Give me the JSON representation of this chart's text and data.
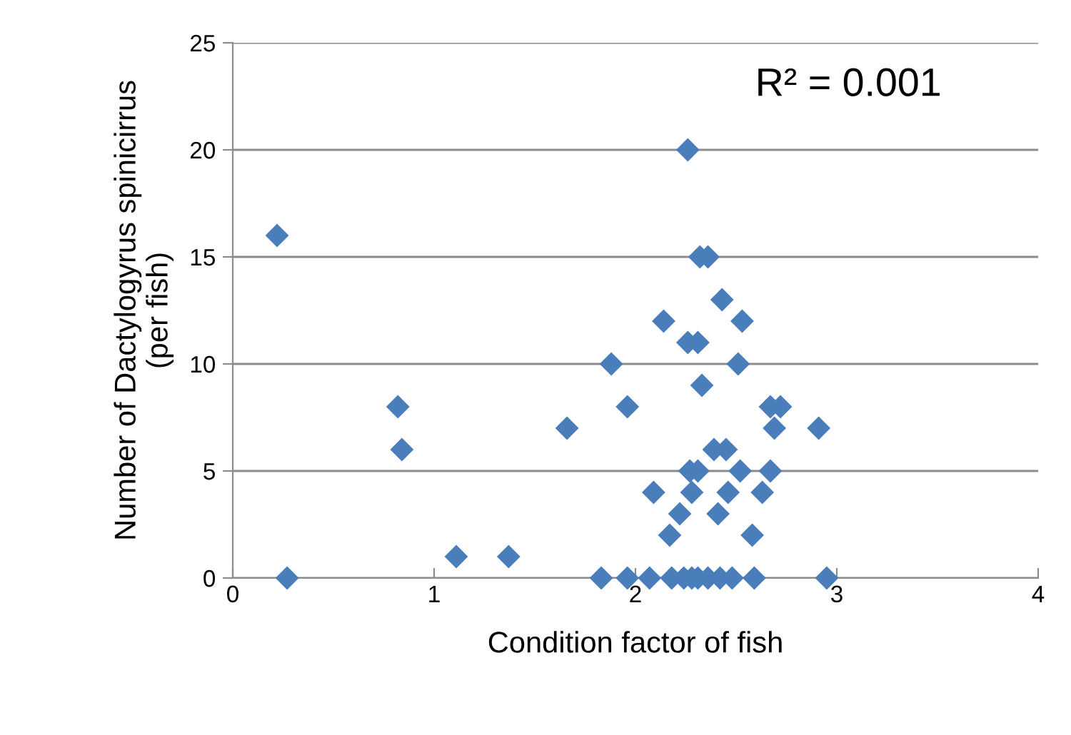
{
  "chart_data": {
    "type": "scatter",
    "xlabel": "Condition factor of fish",
    "ylabel": "Number of Dactylogyrus spinicirrus\n(per fish)",
    "annotations": [
      "R² = 0.001"
    ],
    "xlim": [
      0,
      4
    ],
    "xticks": [
      0,
      1,
      2,
      3,
      4
    ],
    "ylim": [
      0,
      25
    ],
    "yticks": [
      0,
      5,
      10,
      15,
      20,
      25
    ],
    "grid": "y",
    "marker": "diamond",
    "series": [
      {
        "color": "#4a7ebb",
        "x": [
          0.22,
          0.27,
          0.82,
          0.84,
          1.11,
          1.37,
          1.66,
          1.88,
          1.96,
          1.83,
          1.96,
          2.26,
          2.32,
          2.36,
          2.43,
          2.14,
          2.53,
          2.26,
          2.31,
          2.51,
          2.33,
          2.67,
          2.72,
          2.69,
          2.91,
          2.39,
          2.45,
          2.27,
          2.31,
          2.52,
          2.67,
          2.09,
          2.28,
          2.46,
          2.63,
          2.22,
          2.41,
          2.17,
          2.58,
          2.07,
          2.18,
          2.24,
          2.28,
          2.31,
          2.36,
          2.42,
          2.48,
          2.59,
          2.95
        ],
        "values": [
          16,
          0,
          8,
          6,
          1,
          1,
          7,
          10,
          8,
          0,
          0,
          20,
          15,
          15,
          13,
          12,
          12,
          11,
          11,
          10,
          9,
          8,
          8,
          7,
          7,
          6,
          6,
          5,
          5,
          5,
          5,
          4,
          4,
          4,
          4,
          3,
          3,
          2,
          2,
          0,
          0,
          0,
          0,
          0,
          0,
          0,
          0,
          0,
          0
        ]
      }
    ]
  }
}
